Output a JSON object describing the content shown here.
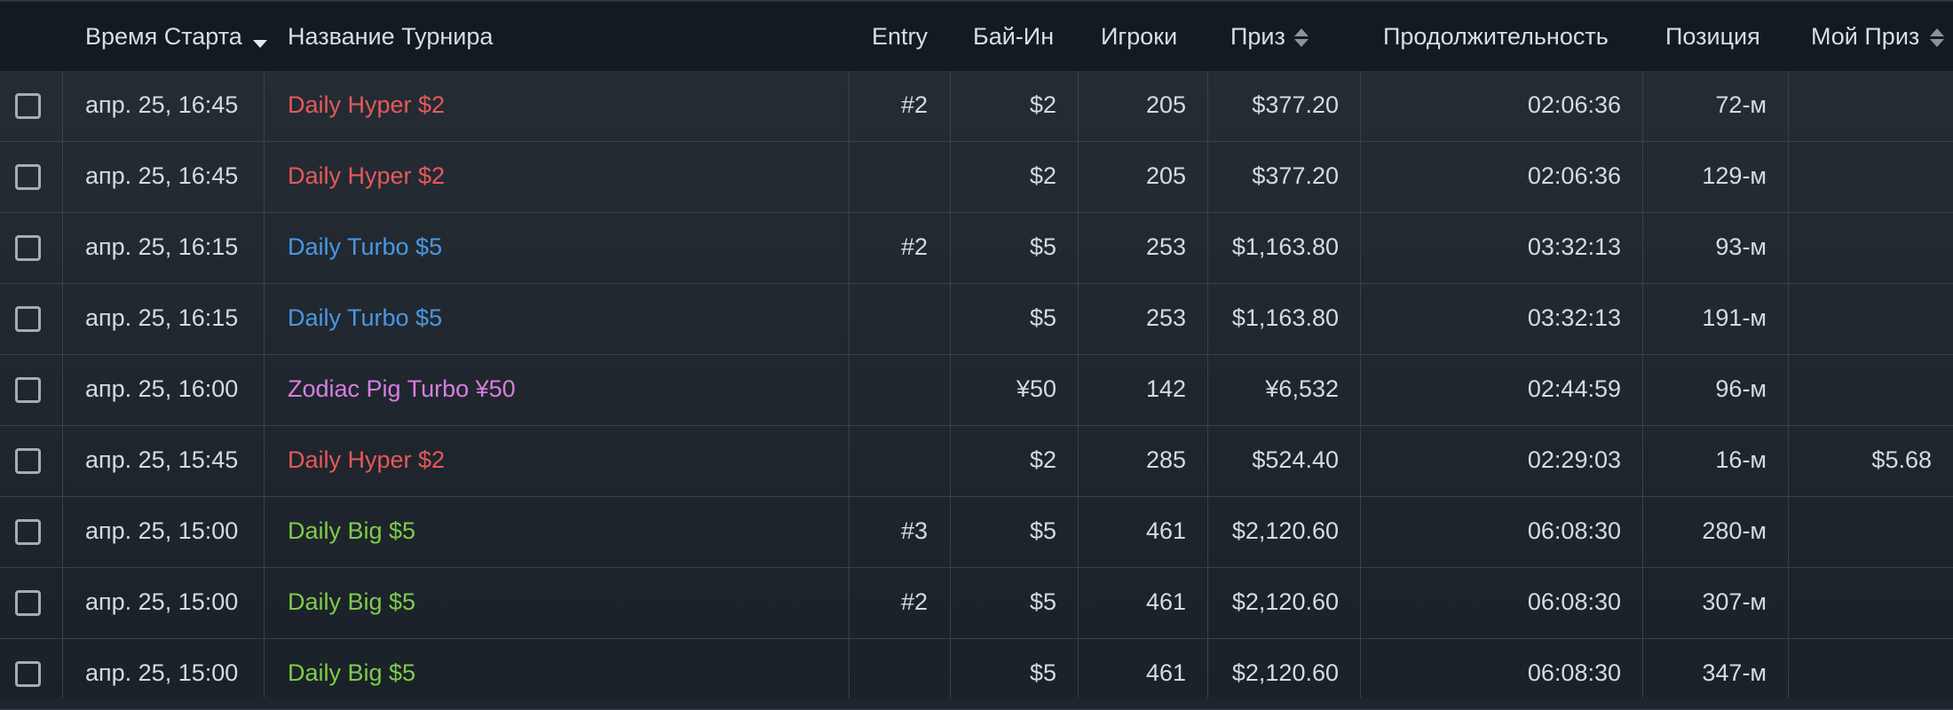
{
  "columns": {
    "start_time": "Время Старта",
    "name": "Название Турнира",
    "entry": "Entry",
    "buyin": "Бай-Ин",
    "players": "Игроки",
    "prize": "Приз",
    "duration": "Продолжительность",
    "position": "Позиция",
    "my_prize": "Мой Приз"
  },
  "sort": {
    "active_column": "start_time",
    "direction": "descending"
  },
  "colors": {
    "hyper": "#e5595a",
    "turbo": "#4a97e3",
    "zodiac": "#d77fe0",
    "big": "#7ecc4b"
  },
  "rows": [
    {
      "time": "апр. 25, 16:45",
      "name": "Daily Hyper $2",
      "color": "hyper",
      "entry": "#2",
      "buyin": "$2",
      "players": "205",
      "prize": "$377.20",
      "duration": "02:06:36",
      "position": "72-м",
      "my_prize": ""
    },
    {
      "time": "апр. 25, 16:45",
      "name": "Daily Hyper $2",
      "color": "hyper",
      "entry": "",
      "buyin": "$2",
      "players": "205",
      "prize": "$377.20",
      "duration": "02:06:36",
      "position": "129-м",
      "my_prize": ""
    },
    {
      "time": "апр. 25, 16:15",
      "name": "Daily Turbo $5",
      "color": "turbo",
      "entry": "#2",
      "buyin": "$5",
      "players": "253",
      "prize": "$1,163.80",
      "duration": "03:32:13",
      "position": "93-м",
      "my_prize": ""
    },
    {
      "time": "апр. 25, 16:15",
      "name": "Daily Turbo $5",
      "color": "turbo",
      "entry": "",
      "buyin": "$5",
      "players": "253",
      "prize": "$1,163.80",
      "duration": "03:32:13",
      "position": "191-м",
      "my_prize": ""
    },
    {
      "time": "апр. 25, 16:00",
      "name": "Zodiac Pig Turbo ¥50",
      "color": "zodiac",
      "entry": "",
      "buyin": "¥50",
      "players": "142",
      "prize": "¥6,532",
      "duration": "02:44:59",
      "position": "96-м",
      "my_prize": ""
    },
    {
      "time": "апр. 25, 15:45",
      "name": "Daily Hyper $2",
      "color": "hyper",
      "entry": "",
      "buyin": "$2",
      "players": "285",
      "prize": "$524.40",
      "duration": "02:29:03",
      "position": "16-м",
      "my_prize": "$5.68"
    },
    {
      "time": "апр. 25, 15:00",
      "name": "Daily Big $5",
      "color": "big",
      "entry": "#3",
      "buyin": "$5",
      "players": "461",
      "prize": "$2,120.60",
      "duration": "06:08:30",
      "position": "280-м",
      "my_prize": ""
    },
    {
      "time": "апр. 25, 15:00",
      "name": "Daily Big $5",
      "color": "big",
      "entry": "#2",
      "buyin": "$5",
      "players": "461",
      "prize": "$2,120.60",
      "duration": "06:08:30",
      "position": "307-м",
      "my_prize": ""
    },
    {
      "time": "апр. 25, 15:00",
      "name": "Daily Big $5",
      "color": "big",
      "entry": "",
      "buyin": "$5",
      "players": "461",
      "prize": "$2,120.60",
      "duration": "06:08:30",
      "position": "347-м",
      "my_prize": ""
    }
  ]
}
